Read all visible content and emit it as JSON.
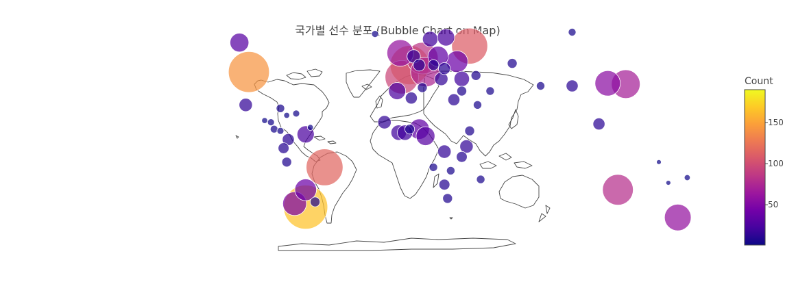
{
  "chart_data": {
    "type": "scatter",
    "title": "국가별 선수 분포 (Bubble Chart on Map)",
    "colorbar": {
      "title": "Count",
      "range": [
        1,
        190
      ],
      "ticks": [
        50,
        100,
        150
      ],
      "colorscale": [
        "#0d0887",
        "#46039f",
        "#7201a8",
        "#9c179e",
        "#bd3786",
        "#d8576b",
        "#ed7953",
        "#fb9f3a",
        "#fdca26",
        "#f0f921"
      ]
    },
    "points": [
      {
        "lon": -100,
        "lat": 43,
        "count": 142
      },
      {
        "lon": -106,
        "lat": 60,
        "count": 30
      },
      {
        "lon": -102,
        "lat": 24,
        "count": 15
      },
      {
        "lon": -64,
        "lat": -35,
        "count": 165
      },
      {
        "lon": -52,
        "lat": -12,
        "count": 115
      },
      {
        "lon": -71,
        "lat": -33,
        "count": 48
      },
      {
        "lon": -64,
        "lat": -25,
        "count": 40
      },
      {
        "lon": -58,
        "lat": -32,
        "count": 8
      },
      {
        "lon": -75,
        "lat": 4,
        "count": 12
      },
      {
        "lon": -64,
        "lat": 7,
        "count": 25
      },
      {
        "lon": -78,
        "lat": -1,
        "count": 10
      },
      {
        "lon": -76,
        "lat": -9,
        "count": 8
      },
      {
        "lon": -80,
        "lat": 22,
        "count": 6
      },
      {
        "lon": -76,
        "lat": 18,
        "count": 3
      },
      {
        "lon": -70,
        "lat": 19,
        "count": 4
      },
      {
        "lon": -84,
        "lat": 10,
        "count": 5
      },
      {
        "lon": -86,
        "lat": 14,
        "count": 4
      },
      {
        "lon": -90,
        "lat": 15,
        "count": 3
      },
      {
        "lon": -80,
        "lat": 9,
        "count": 4
      },
      {
        "lon": -61,
        "lat": 11,
        "count": 3
      },
      {
        "lon": -3,
        "lat": 40,
        "count": 95
      },
      {
        "lon": 2,
        "lat": 47,
        "count": 130
      },
      {
        "lon": -4,
        "lat": 54,
        "count": 60
      },
      {
        "lon": 10,
        "lat": 51,
        "count": 85
      },
      {
        "lon": 12,
        "lat": 43,
        "count": 75
      },
      {
        "lon": 15,
        "lat": 62,
        "count": 20
      },
      {
        "lon": 25,
        "lat": 63,
        "count": 25
      },
      {
        "lon": 40,
        "lat": 58,
        "count": 110
      },
      {
        "lon": 20,
        "lat": 52,
        "count": 35
      },
      {
        "lon": 32,
        "lat": 49,
        "count": 40
      },
      {
        "lon": 4.5,
        "lat": 52,
        "count": 15
      },
      {
        "lon": 8,
        "lat": 47,
        "count": 12
      },
      {
        "lon": 17,
        "lat": 47,
        "count": 10
      },
      {
        "lon": 24,
        "lat": 45,
        "count": 12
      },
      {
        "lon": 22,
        "lat": 39,
        "count": 15
      },
      {
        "lon": 35,
        "lat": 39,
        "count": 20
      },
      {
        "lon": 44,
        "lat": 41,
        "count": 8
      },
      {
        "lon": 67,
        "lat": 48,
        "count": 8
      },
      {
        "lon": 105,
        "lat": 66,
        "count": 5
      },
      {
        "lon": -20,
        "lat": 65,
        "count": 4
      },
      {
        "lon": 10,
        "lat": 34,
        "count": 8
      },
      {
        "lon": 3,
        "lat": 28,
        "count": 12
      },
      {
        "lon": -6,
        "lat": 32,
        "count": 25
      },
      {
        "lon": 30,
        "lat": 27,
        "count": 12
      },
      {
        "lon": 35,
        "lat": 32,
        "count": 8
      },
      {
        "lon": 53,
        "lat": 32,
        "count": 6
      },
      {
        "lon": 45,
        "lat": 24,
        "count": 6
      },
      {
        "lon": 8,
        "lat": 10,
        "count": 35
      },
      {
        "lon": -5,
        "lat": 8,
        "count": 20
      },
      {
        "lon": -14,
        "lat": 14,
        "count": 15
      },
      {
        "lon": 12,
        "lat": 6,
        "count": 30
      },
      {
        "lon": -1,
        "lat": 8,
        "count": 20
      },
      {
        "lon": 2,
        "lat": 10,
        "count": 8
      },
      {
        "lon": 24,
        "lat": -3,
        "count": 15
      },
      {
        "lon": 38,
        "lat": 0,
        "count": 15
      },
      {
        "lon": 40,
        "lat": 9,
        "count": 8
      },
      {
        "lon": 35,
        "lat": -6,
        "count": 10
      },
      {
        "lon": 47,
        "lat": -19,
        "count": 6
      },
      {
        "lon": 24,
        "lat": -22,
        "count": 10
      },
      {
        "lon": 17,
        "lat": -12,
        "count": 6
      },
      {
        "lon": 28,
        "lat": -14,
        "count": 6
      },
      {
        "lon": 26,
        "lat": -30,
        "count": 8
      },
      {
        "lon": 139,
        "lat": 36,
        "count": 70
      },
      {
        "lon": 127.5,
        "lat": 36.5,
        "count": 55
      },
      {
        "lon": 122,
        "lat": 13,
        "count": 12
      },
      {
        "lon": 134,
        "lat": -25,
        "count": 80
      },
      {
        "lon": 172,
        "lat": -41,
        "count": 60
      },
      {
        "lon": 178,
        "lat": -18,
        "count": 3
      },
      {
        "lon": 166,
        "lat": -21,
        "count": 2
      },
      {
        "lon": 160,
        "lat": -9,
        "count": 2
      },
      {
        "lon": 105,
        "lat": 35,
        "count": 12
      },
      {
        "lon": 85,
        "lat": 35,
        "count": 6
      }
    ]
  }
}
